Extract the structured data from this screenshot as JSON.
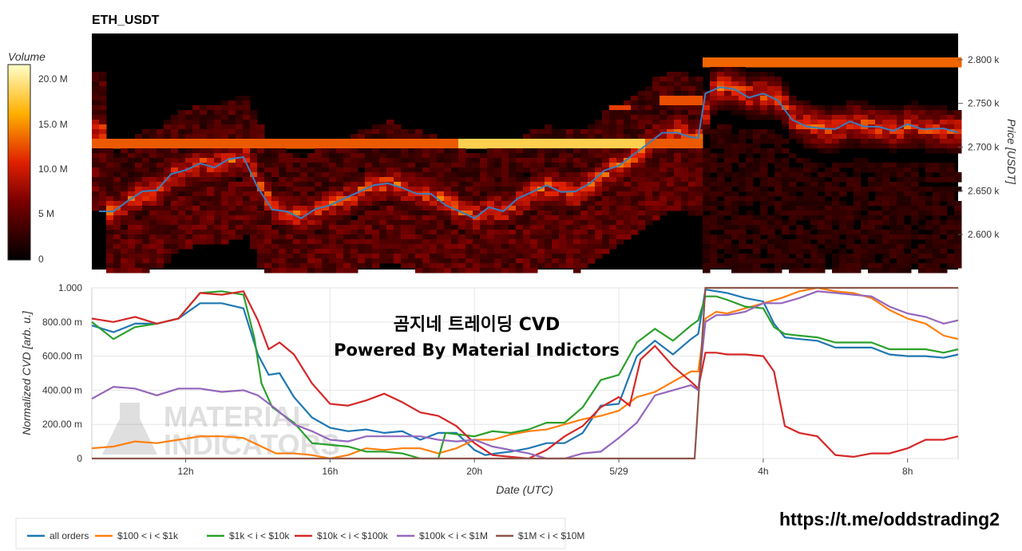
{
  "title": "ETH_USDT",
  "colorbar": {
    "label": "Volume",
    "ticks": [
      "20.0 M",
      "15.0 M",
      "10.0 M",
      "5 M",
      "0"
    ]
  },
  "overlay": {
    "line1": "곰지네 트레이딩 CVD",
    "line2": "Powered By Material Indictors",
    "watermark1": "MATERIAL",
    "watermark2": "INDICATORS"
  },
  "link": "https://t.me/oddstrading2",
  "colors": {
    "all_orders": "#1f77b4",
    "tier_100_1k": "#ff7f0e",
    "tier_1k_10k": "#2ca02c",
    "tier_10k_100k": "#d62728",
    "tier_100k_1m": "#9467bd",
    "tier_1m_10m": "#8c564b"
  },
  "chart_data": [
    {
      "type": "heatmap",
      "title": "ETH_USDT",
      "ylabel": "Price [USDT]",
      "yticks": [
        "2.800 k",
        "2.750 k",
        "2.700 k",
        "2.650 k",
        "2.600 k"
      ],
      "ylim": [
        2560,
        2830
      ],
      "zlabel": "Volume",
      "zlim": [
        0,
        22000000
      ],
      "overlay_series": {
        "name": "",
        "x": [
          9.6,
          10.0,
          10.4,
          10.8,
          11.2,
          11.6,
          12.0,
          12.4,
          12.8,
          13.2,
          13.6,
          14.0,
          14.4,
          14.8,
          15.2,
          15.6,
          16.0,
          16.4,
          16.8,
          17.2,
          17.6,
          18.0,
          18.4,
          18.8,
          19.2,
          19.6,
          20.0,
          20.4,
          20.8,
          21.2,
          21.6,
          22.0,
          22.4,
          22.8,
          23.2,
          23.6,
          24.0,
          24.4,
          24.8,
          25.2,
          25.6,
          26.0,
          26.2,
          26.4,
          26.8,
          27.2,
          27.6,
          28.0,
          28.4,
          28.8,
          29.2,
          29.6,
          30.0,
          30.4,
          30.8,
          31.2,
          31.6,
          32.0,
          32.4,
          33.0,
          33.4
        ],
        "y": [
          2628,
          2625,
          2640,
          2648,
          2652,
          2668,
          2675,
          2680,
          2678,
          2685,
          2690,
          2652,
          2630,
          2625,
          2620,
          2628,
          2635,
          2640,
          2650,
          2655,
          2660,
          2652,
          2648,
          2645,
          2635,
          2625,
          2620,
          2630,
          2628,
          2640,
          2650,
          2655,
          2650,
          2648,
          2660,
          2672,
          2680,
          2690,
          2705,
          2715,
          2718,
          2710,
          2712,
          2760,
          2770,
          2765,
          2758,
          2760,
          2755,
          2730,
          2725,
          2720,
          2722,
          2728,
          2725,
          2722,
          2720,
          2725,
          2722,
          2720,
          2718
        ]
      }
    },
    {
      "type": "line",
      "xlabel": "Date (UTC)",
      "ylabel": "Normalized CVD [arb. u.]",
      "x_ticks": [
        {
          "x": 12,
          "label": "12h"
        },
        {
          "x": 16,
          "label": "16h"
        },
        {
          "x": 20,
          "label": "20h"
        },
        {
          "x": 24,
          "label": "5/29"
        },
        {
          "x": 28,
          "label": "4h"
        },
        {
          "x": 32,
          "label": "8h"
        }
      ],
      "xlim": [
        9.4,
        33.4
      ],
      "y_ticks": [
        "0",
        "200.00 m",
        "400.00 m",
        "600.00 m",
        "800.00 m",
        "1.000"
      ],
      "ylim": [
        0,
        1
      ],
      "grid": true,
      "legend_position": "bottom-left",
      "series": [
        {
          "name": "all orders",
          "x": [
            9.4,
            10.0,
            10.6,
            11.2,
            11.8,
            12.4,
            13.0,
            13.6,
            14.0,
            14.3,
            14.6,
            15.0,
            15.5,
            16.0,
            16.5,
            17.0,
            17.5,
            18.0,
            18.5,
            19.0,
            19.5,
            20.0,
            20.3,
            20.6,
            21.0,
            21.5,
            22.0,
            22.5,
            23.0,
            23.5,
            24.0,
            24.5,
            25.0,
            25.5,
            26.0,
            26.2,
            26.4,
            26.7,
            27.0,
            27.5,
            28.0,
            28.3,
            28.6,
            29.0,
            29.5,
            30.0,
            30.5,
            31.0,
            31.5,
            32.0,
            32.5,
            33.0,
            33.4
          ],
          "y": [
            0.78,
            0.74,
            0.78,
            0.8,
            0.82,
            0.9,
            0.92,
            0.88,
            0.6,
            0.5,
            0.5,
            0.35,
            0.25,
            0.18,
            0.15,
            0.18,
            0.15,
            0.15,
            0.12,
            0.15,
            0.14,
            0.06,
            0.02,
            0.02,
            0.05,
            0.06,
            0.08,
            0.1,
            0.15,
            0.3,
            0.33,
            0.6,
            0.68,
            0.62,
            0.7,
            0.72,
            1.0,
            0.98,
            0.96,
            0.95,
            0.92,
            0.78,
            0.72,
            0.7,
            0.68,
            0.66,
            0.65,
            0.64,
            0.62,
            0.6,
            0.59,
            0.6,
            0.61
          ]
        },
        {
          "name": "$100 < i < $1k",
          "x": [
            9.4,
            10.0,
            10.6,
            11.2,
            11.8,
            12.4,
            13.0,
            13.6,
            14.0,
            14.5,
            15.0,
            15.5,
            16.0,
            16.5,
            17.0,
            17.5,
            18.0,
            18.5,
            19.0,
            19.5,
            20.0,
            20.5,
            21.0,
            21.5,
            22.0,
            22.5,
            23.0,
            23.5,
            24.0,
            24.5,
            25.0,
            25.5,
            26.0,
            26.2,
            26.4,
            26.7,
            27.0,
            27.5,
            28.0,
            28.5,
            29.0,
            29.5,
            30.0,
            30.5,
            31.0,
            31.5,
            32.0,
            32.5,
            33.0,
            33.4
          ],
          "y": [
            0.06,
            0.07,
            0.09,
            0.1,
            0.11,
            0.12,
            0.14,
            0.12,
            0.07,
            0.04,
            0.03,
            0.01,
            0.0,
            0.02,
            0.05,
            0.06,
            0.06,
            0.05,
            0.04,
            0.06,
            0.1,
            0.12,
            0.14,
            0.15,
            0.18,
            0.2,
            0.22,
            0.26,
            0.28,
            0.35,
            0.4,
            0.45,
            0.5,
            0.52,
            0.82,
            0.85,
            0.86,
            0.88,
            0.9,
            0.95,
            0.98,
            1.0,
            0.99,
            0.97,
            0.93,
            0.88,
            0.82,
            0.78,
            0.73,
            0.7
          ]
        },
        {
          "name": "$1k < i < $10k",
          "x": [
            9.4,
            10.0,
            10.6,
            11.2,
            11.8,
            12.4,
            13.0,
            13.6,
            13.9,
            14.1,
            14.4,
            15.0,
            15.5,
            16.0,
            16.5,
            17.0,
            17.5,
            18.0,
            18.5,
            19.0,
            19.2,
            19.6,
            20.0,
            20.5,
            21.0,
            21.5,
            22.0,
            22.5,
            23.0,
            23.5,
            24.0,
            24.5,
            25.0,
            25.5,
            26.0,
            26.2,
            26.4,
            26.7,
            27.0,
            27.5,
            28.0,
            28.3,
            28.6,
            29.0,
            29.5,
            30.0,
            30.5,
            31.0,
            31.5,
            32.0,
            32.5,
            33.0,
            33.4
          ],
          "y": [
            0.8,
            0.7,
            0.76,
            0.8,
            0.82,
            0.96,
            0.99,
            0.96,
            0.7,
            0.45,
            0.3,
            0.2,
            0.1,
            0.08,
            0.06,
            0.05,
            0.04,
            0.02,
            0.0,
            0.0,
            0.14,
            0.15,
            0.13,
            0.15,
            0.16,
            0.17,
            0.2,
            0.22,
            0.3,
            0.45,
            0.5,
            0.68,
            0.75,
            0.7,
            0.78,
            0.8,
            0.96,
            0.95,
            0.92,
            0.9,
            0.88,
            0.76,
            0.74,
            0.72,
            0.7,
            0.69,
            0.68,
            0.67,
            0.65,
            0.64,
            0.63,
            0.63,
            0.64
          ]
        },
        {
          "name": "$10k < i < $100k",
          "x": [
            9.4,
            10.0,
            10.6,
            11.2,
            11.8,
            12.4,
            13.0,
            13.6,
            14.0,
            14.3,
            14.6,
            15.0,
            15.5,
            16.0,
            16.5,
            17.0,
            17.5,
            18.0,
            18.5,
            19.0,
            19.5,
            20.0,
            20.5,
            21.0,
            21.5,
            22.0,
            22.5,
            23.0,
            23.5,
            24.0,
            24.3,
            24.6,
            25.0,
            25.5,
            26.0,
            26.2,
            26.4,
            26.7,
            27.0,
            27.5,
            28.0,
            28.3,
            28.6,
            29.0,
            29.5,
            30.0,
            30.5,
            31.0,
            31.5,
            32.0,
            32.5,
            33.0,
            33.4
          ],
          "y": [
            0.82,
            0.8,
            0.82,
            0.8,
            0.82,
            0.96,
            0.97,
            0.98,
            0.8,
            0.65,
            0.68,
            0.6,
            0.45,
            0.32,
            0.3,
            0.35,
            0.38,
            0.32,
            0.28,
            0.25,
            0.18,
            0.1,
            0.02,
            0.0,
            0.01,
            0.05,
            0.12,
            0.2,
            0.3,
            0.35,
            0.32,
            0.58,
            0.65,
            0.55,
            0.45,
            0.4,
            0.63,
            0.62,
            0.6,
            0.62,
            0.6,
            0.5,
            0.2,
            0.15,
            0.12,
            0.03,
            0.01,
            0.02,
            0.04,
            0.06,
            0.1,
            0.12,
            0.13
          ]
        },
        {
          "name": "$100k < i < $1M",
          "x": [
            9.4,
            10.0,
            10.6,
            11.2,
            11.8,
            12.4,
            13.0,
            13.6,
            14.0,
            14.5,
            15.0,
            15.5,
            16.0,
            16.5,
            17.0,
            17.5,
            18.0,
            18.5,
            19.0,
            19.5,
            20.0,
            20.5,
            21.0,
            21.5,
            22.0,
            22.5,
            23.0,
            23.5,
            24.0,
            24.5,
            25.0,
            25.5,
            26.0,
            26.2,
            26.4,
            26.7,
            27.0,
            27.5,
            28.0,
            28.5,
            29.0,
            29.5,
            30.0,
            30.5,
            31.0,
            31.5,
            32.0,
            32.5,
            33.0,
            33.4
          ],
          "y": [
            0.35,
            0.42,
            0.4,
            0.38,
            0.41,
            0.4,
            0.4,
            0.4,
            0.36,
            0.3,
            0.2,
            0.15,
            0.12,
            0.1,
            0.12,
            0.14,
            0.13,
            0.12,
            0.12,
            0.1,
            0.1,
            0.08,
            0.05,
            0.02,
            0.0,
            0.0,
            0.02,
            0.05,
            0.12,
            0.2,
            0.38,
            0.4,
            0.42,
            0.41,
            0.8,
            0.83,
            0.85,
            0.86,
            0.9,
            0.92,
            0.94,
            0.97,
            0.98,
            0.96,
            0.94,
            0.9,
            0.85,
            0.82,
            0.8,
            0.81
          ]
        },
        {
          "name": "$1M < i < $10M",
          "x": [
            9.4,
            26.1,
            26.4,
            33.4
          ],
          "y": [
            0.0,
            0.0,
            1.0,
            1.0
          ]
        }
      ]
    }
  ]
}
